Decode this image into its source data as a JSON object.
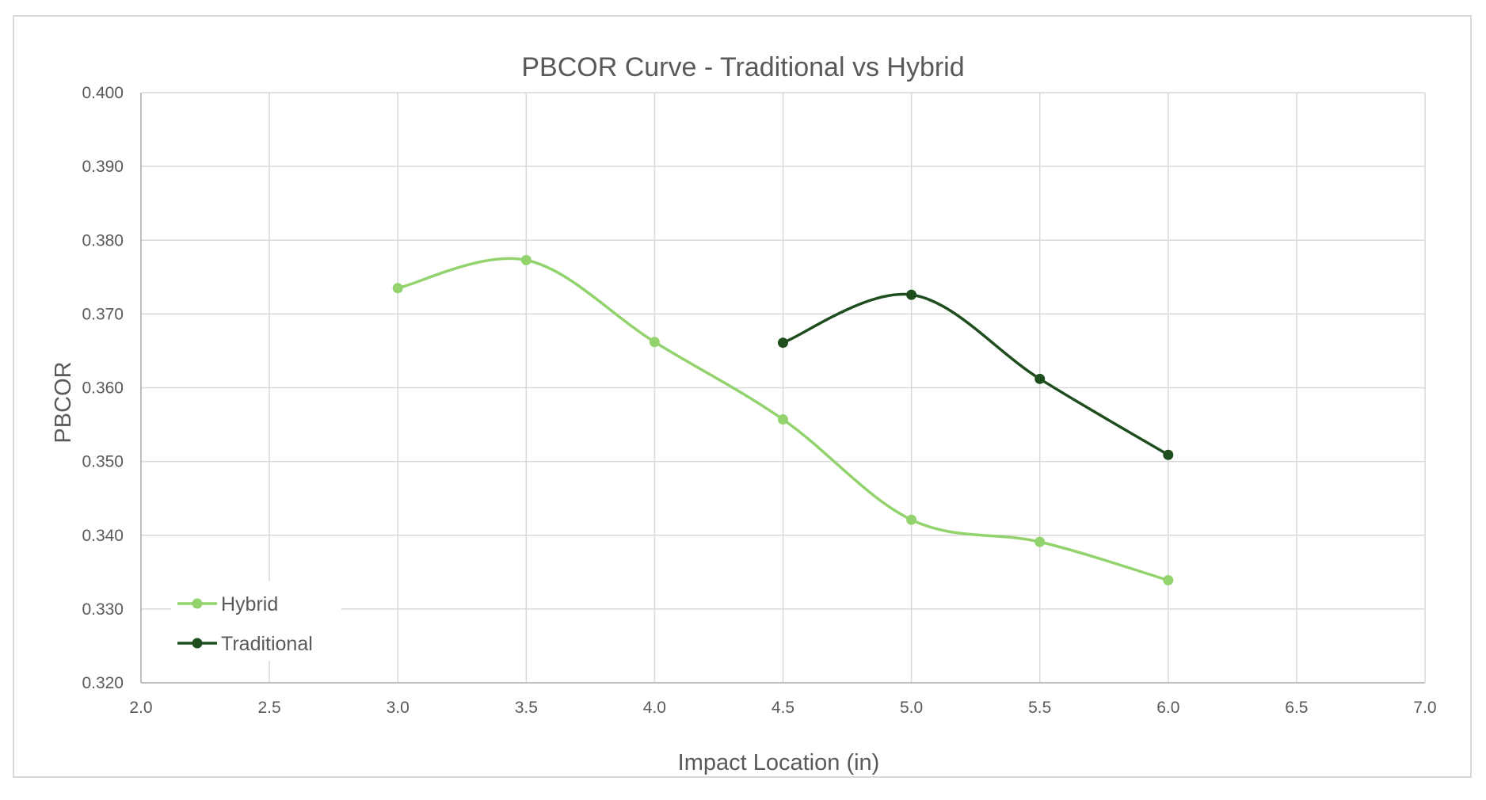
{
  "chart_data": {
    "type": "line",
    "title": "PBCOR Curve - Traditional vs Hybrid",
    "xlabel": "Impact Location (in)",
    "ylabel": "PBCOR",
    "xlim": [
      2.0,
      7.0
    ],
    "ylim": [
      0.32,
      0.4
    ],
    "x_ticks": [
      "2.0",
      "2.5",
      "3.0",
      "3.5",
      "4.0",
      "4.5",
      "5.0",
      "5.5",
      "6.0",
      "6.5",
      "7.0"
    ],
    "y_ticks": [
      "0.320",
      "0.330",
      "0.340",
      "0.350",
      "0.360",
      "0.370",
      "0.380",
      "0.390",
      "0.400"
    ],
    "grid": true,
    "smooth": true,
    "legend_position": "bottom-left",
    "series": [
      {
        "name": "Hybrid",
        "color": "#92d36e",
        "x": [
          3.0,
          3.5,
          4.0,
          4.5,
          5.0,
          5.5,
          6.0
        ],
        "y": [
          0.3735,
          0.3773,
          0.3662,
          0.3557,
          0.3421,
          0.3391,
          0.3339
        ]
      },
      {
        "name": "Traditional",
        "color": "#1e4d1e",
        "x": [
          4.5,
          5.0,
          5.5,
          6.0
        ],
        "y": [
          0.3661,
          0.3726,
          0.3612,
          0.3509
        ]
      }
    ]
  }
}
